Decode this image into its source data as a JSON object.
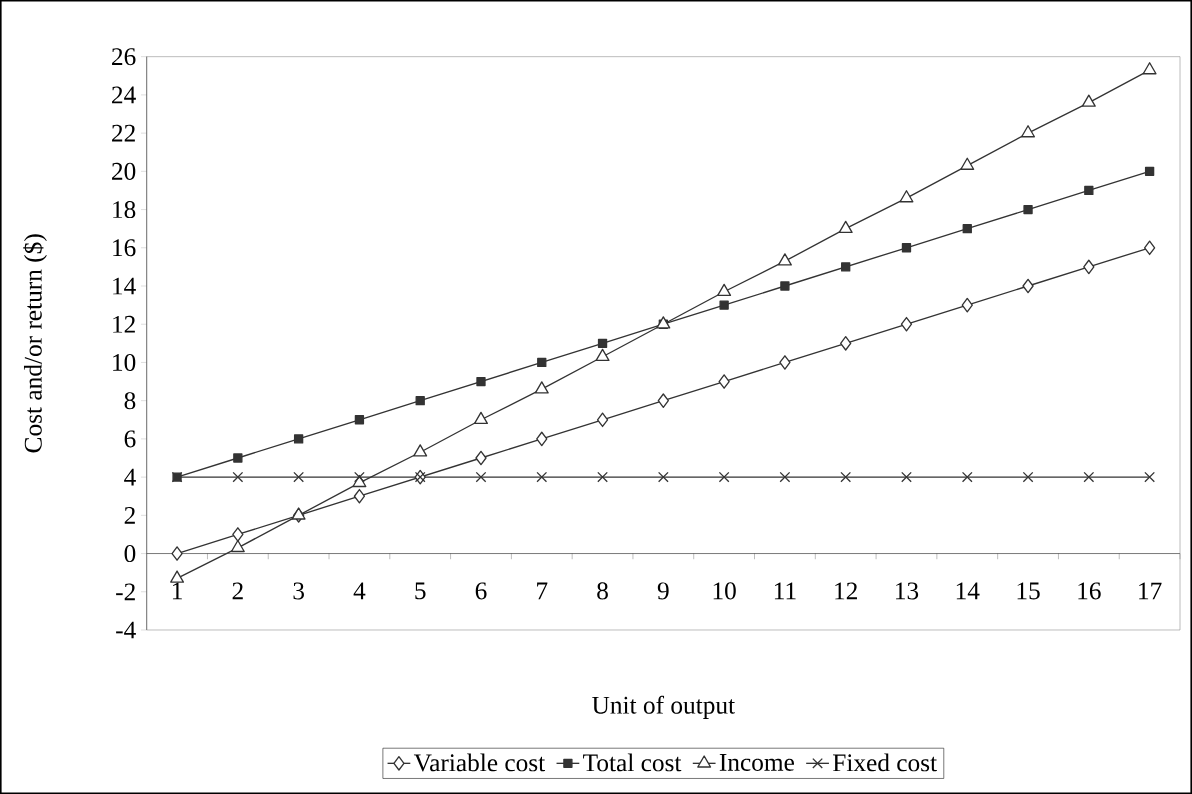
{
  "chart_data": {
    "type": "line",
    "xlabel": "Unit of output",
    "ylabel": "Cost and/or return ($)",
    "categories": [
      "1",
      "2",
      "3",
      "4",
      "5",
      "6",
      "7",
      "8",
      "9",
      "10",
      "11",
      "12",
      "13",
      "14",
      "15",
      "16",
      "17"
    ],
    "series": [
      {
        "name": "Variable cost",
        "color": "#333333",
        "marker": "diamond",
        "values": [
          0,
          1,
          2,
          3,
          4,
          5,
          6,
          7,
          8,
          9,
          10,
          11,
          12,
          13,
          14,
          15,
          16
        ]
      },
      {
        "name": "Total cost",
        "color": "#333333",
        "marker": "square",
        "values": [
          4,
          5,
          6,
          7,
          8,
          9,
          10,
          11,
          12,
          13,
          14,
          15,
          16,
          17,
          18,
          19,
          20
        ]
      },
      {
        "name": "Income",
        "color": "#333333",
        "marker": "triangle",
        "values": [
          -1.3,
          0.3,
          2.0,
          3.7,
          5.3,
          7.0,
          8.6,
          10.3,
          12.0,
          13.7,
          15.3,
          17.0,
          18.6,
          20.3,
          22.0,
          23.6,
          25.3
        ]
      },
      {
        "name": "Fixed cost",
        "color": "#333333",
        "marker": "cross",
        "values": [
          4,
          4,
          4,
          4,
          4,
          4,
          4,
          4,
          4,
          4,
          4,
          4,
          4,
          4,
          4,
          4,
          4
        ]
      }
    ],
    "ylim": [
      -4,
      26
    ],
    "yticks": [
      -4,
      -2,
      0,
      2,
      4,
      6,
      8,
      10,
      12,
      14,
      16,
      18,
      20,
      22,
      24,
      26
    ],
    "grid": false,
    "legend": "bottom"
  }
}
